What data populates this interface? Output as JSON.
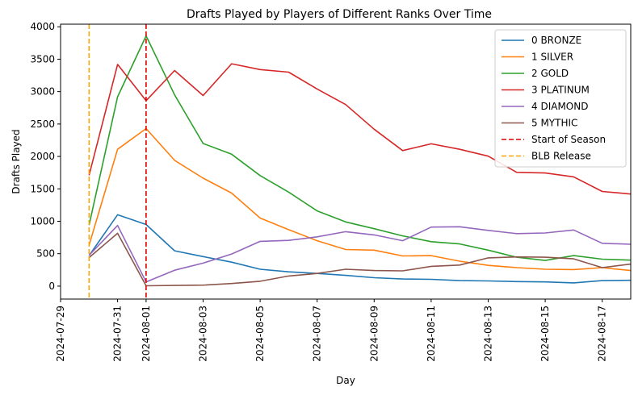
{
  "chart_data": {
    "type": "line",
    "title": "Drafts Played by Players of Different Ranks Over Time",
    "xlabel": "Day",
    "ylabel": "Drafts Played",
    "x": [
      "2024-07-30",
      "2024-07-31",
      "2024-08-01",
      "2024-08-02",
      "2024-08-03",
      "2024-08-04",
      "2024-08-05",
      "2024-08-06",
      "2024-08-07",
      "2024-08-08",
      "2024-08-09",
      "2024-08-10",
      "2024-08-11",
      "2024-08-12",
      "2024-08-13",
      "2024-08-14",
      "2024-08-15",
      "2024-08-16",
      "2024-08-17",
      "2024-08-18"
    ],
    "xlim": [
      "2024-07-29",
      "2024-08-18"
    ],
    "ylim": [
      -200,
      4040
    ],
    "xticks": [
      "2024-07-29",
      "2024-07-31",
      "2024-08-01",
      "2024-08-03",
      "2024-08-05",
      "2024-08-07",
      "2024-08-09",
      "2024-08-11",
      "2024-08-13",
      "2024-08-15",
      "2024-08-17"
    ],
    "yticks": [
      0,
      500,
      1000,
      1500,
      2000,
      2500,
      3000,
      3500,
      4000
    ],
    "grid": false,
    "legend": "top-right",
    "series": [
      {
        "name": "0 BRONZE",
        "color": "#1f77b4",
        "values": [
          470,
          1100,
          950,
          545,
          455,
          370,
          260,
          220,
          195,
          165,
          130,
          110,
          105,
          85,
          80,
          70,
          65,
          50,
          85,
          90
        ]
      },
      {
        "name": "1 SILVER",
        "color": "#ff7f0e",
        "values": [
          630,
          2110,
          2430,
          1940,
          1665,
          1435,
          1050,
          870,
          700,
          565,
          555,
          465,
          470,
          385,
          320,
          285,
          260,
          255,
          285,
          240
        ]
      },
      {
        "name": "2 GOLD",
        "color": "#2ca02c",
        "values": [
          940,
          2920,
          3860,
          2950,
          2200,
          2035,
          1705,
          1450,
          1160,
          990,
          885,
          775,
          685,
          650,
          555,
          445,
          395,
          470,
          415,
          400
        ]
      },
      {
        "name": "3 PLATINUM",
        "color": "#d62728",
        "values": [
          1710,
          3420,
          2860,
          3325,
          2940,
          3430,
          3340,
          3300,
          3040,
          2800,
          2420,
          2090,
          2195,
          2110,
          2005,
          1755,
          1745,
          1685,
          1460,
          1420
        ]
      },
      {
        "name": "4 DIAMOND",
        "color": "#9467bd",
        "values": [
          475,
          935,
          65,
          245,
          355,
          495,
          690,
          705,
          760,
          840,
          790,
          700,
          910,
          915,
          860,
          810,
          820,
          865,
          660,
          645
        ]
      },
      {
        "name": "5 MYTHIC",
        "color": "#8c564b",
        "values": [
          440,
          815,
          5,
          10,
          15,
          40,
          75,
          155,
          195,
          260,
          240,
          235,
          305,
          325,
          435,
          450,
          445,
          420,
          285,
          340
        ]
      }
    ],
    "vlines": [
      {
        "name": "Start of Season",
        "x": "2024-08-01",
        "color": "#e00000"
      },
      {
        "name": "BLB Release",
        "x": "2024-07-30",
        "color": "#ffa500"
      }
    ]
  }
}
